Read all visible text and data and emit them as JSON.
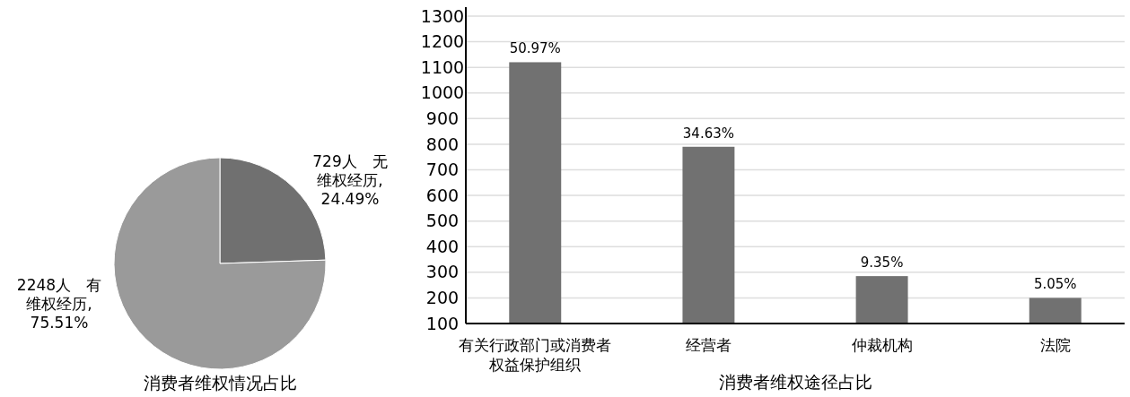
{
  "chart_data": [
    {
      "type": "pie",
      "title": "消费者维权情况占比",
      "categories": [
        "729人　无维权经历, 24.49%",
        "2248人　有维权经历, 75.51%"
      ],
      "values": [
        729,
        2248
      ],
      "colors": [
        "#707070",
        "#9a9a9a"
      ]
    },
    {
      "type": "bar",
      "xlabel": "消费者维权途径占比",
      "categories": [
        "有关行政部门或消费者权益保护组织",
        "经营者",
        "仲裁机构",
        "法院"
      ],
      "values": [
        1120,
        790,
        285,
        200
      ],
      "color": "#717171",
      "ylim": [
        100,
        1300
      ],
      "yticks": [
        100,
        200,
        300,
        400,
        500,
        600,
        700,
        800,
        900,
        1000,
        1100,
        1200,
        1300
      ],
      "grid": "y",
      "annotations": [
        {
          "text": "50.97%",
          "x": "有关行政部门或消费者权益保护组织",
          "y": 1120
        },
        {
          "text": "34.63%",
          "x": "经营者",
          "y": 790
        },
        {
          "text": "9.35%",
          "x": "仲裁机构",
          "y": 285
        },
        {
          "text": "5.05%",
          "x": "法院",
          "y": 200
        }
      ]
    }
  ]
}
